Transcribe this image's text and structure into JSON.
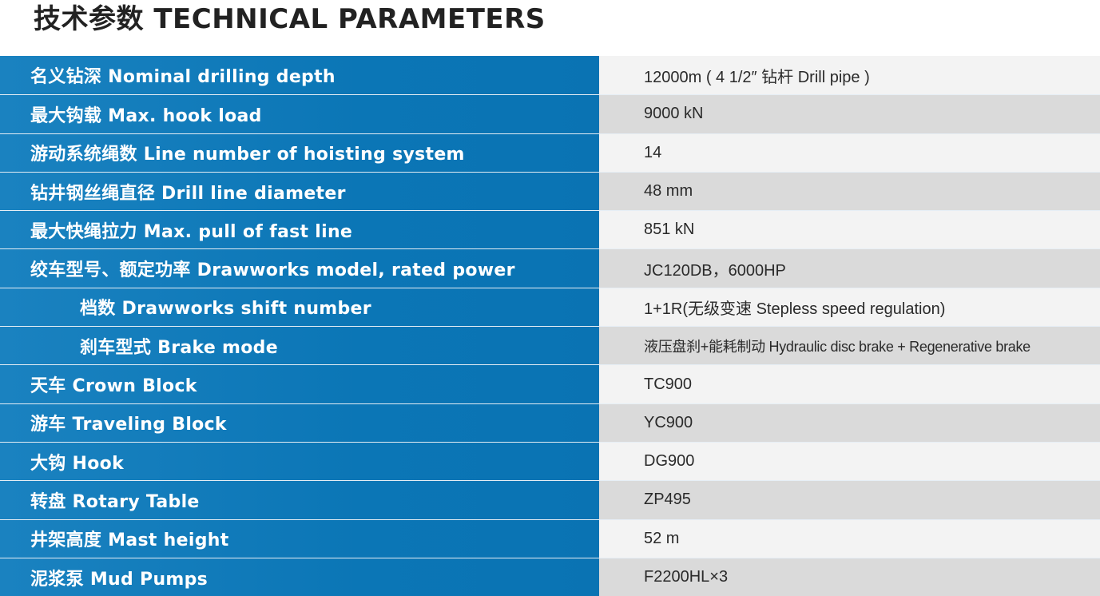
{
  "title": "技术参数 TECHNICAL PARAMETERS",
  "rows": [
    {
      "label": "名义钻深  Nominal drilling depth",
      "value": "12000m ( 4 1/2″  钻杆  Drill pipe )"
    },
    {
      "label": "最大钩载  Max. hook load",
      "value": "9000 kN"
    },
    {
      "label": "游动系统绳数  Line number of hoisting system",
      "value": "14"
    },
    {
      "label": "钻井钢丝绳直径  Drill line diameter",
      "value": "48 mm"
    },
    {
      "label": "最大快绳拉力  Max. pull of fast line",
      "value": "851 kN"
    },
    {
      "label": "绞车型号、额定功率  Drawworks model, rated power",
      "value": "JC120DB，6000HP"
    },
    {
      "label": "档数  Drawworks shift number",
      "value": "1+1R(无级变速 Stepless speed regulation)"
    },
    {
      "label": "刹车型式  Brake mode",
      "value": "液压盘刹+能耗制动  Hydraulic disc brake + Regenerative brake"
    },
    {
      "label": "天车  Crown Block",
      "value": "TC900"
    },
    {
      "label": "游车  Traveling Block",
      "value": "YC900"
    },
    {
      "label": "大钩  Hook",
      "value": "DG900"
    },
    {
      "label": "转盘  Rotary Table",
      "value": "ZP495"
    },
    {
      "label": "井架高度  Mast height",
      "value": "52 m"
    },
    {
      "label": "泥浆泵  Mud Pumps",
      "value": "F2200HL×3"
    }
  ],
  "colors": {
    "label_bg": "#0b76b6",
    "row_light": "#f3f3f3",
    "row_dark": "#dadada"
  }
}
